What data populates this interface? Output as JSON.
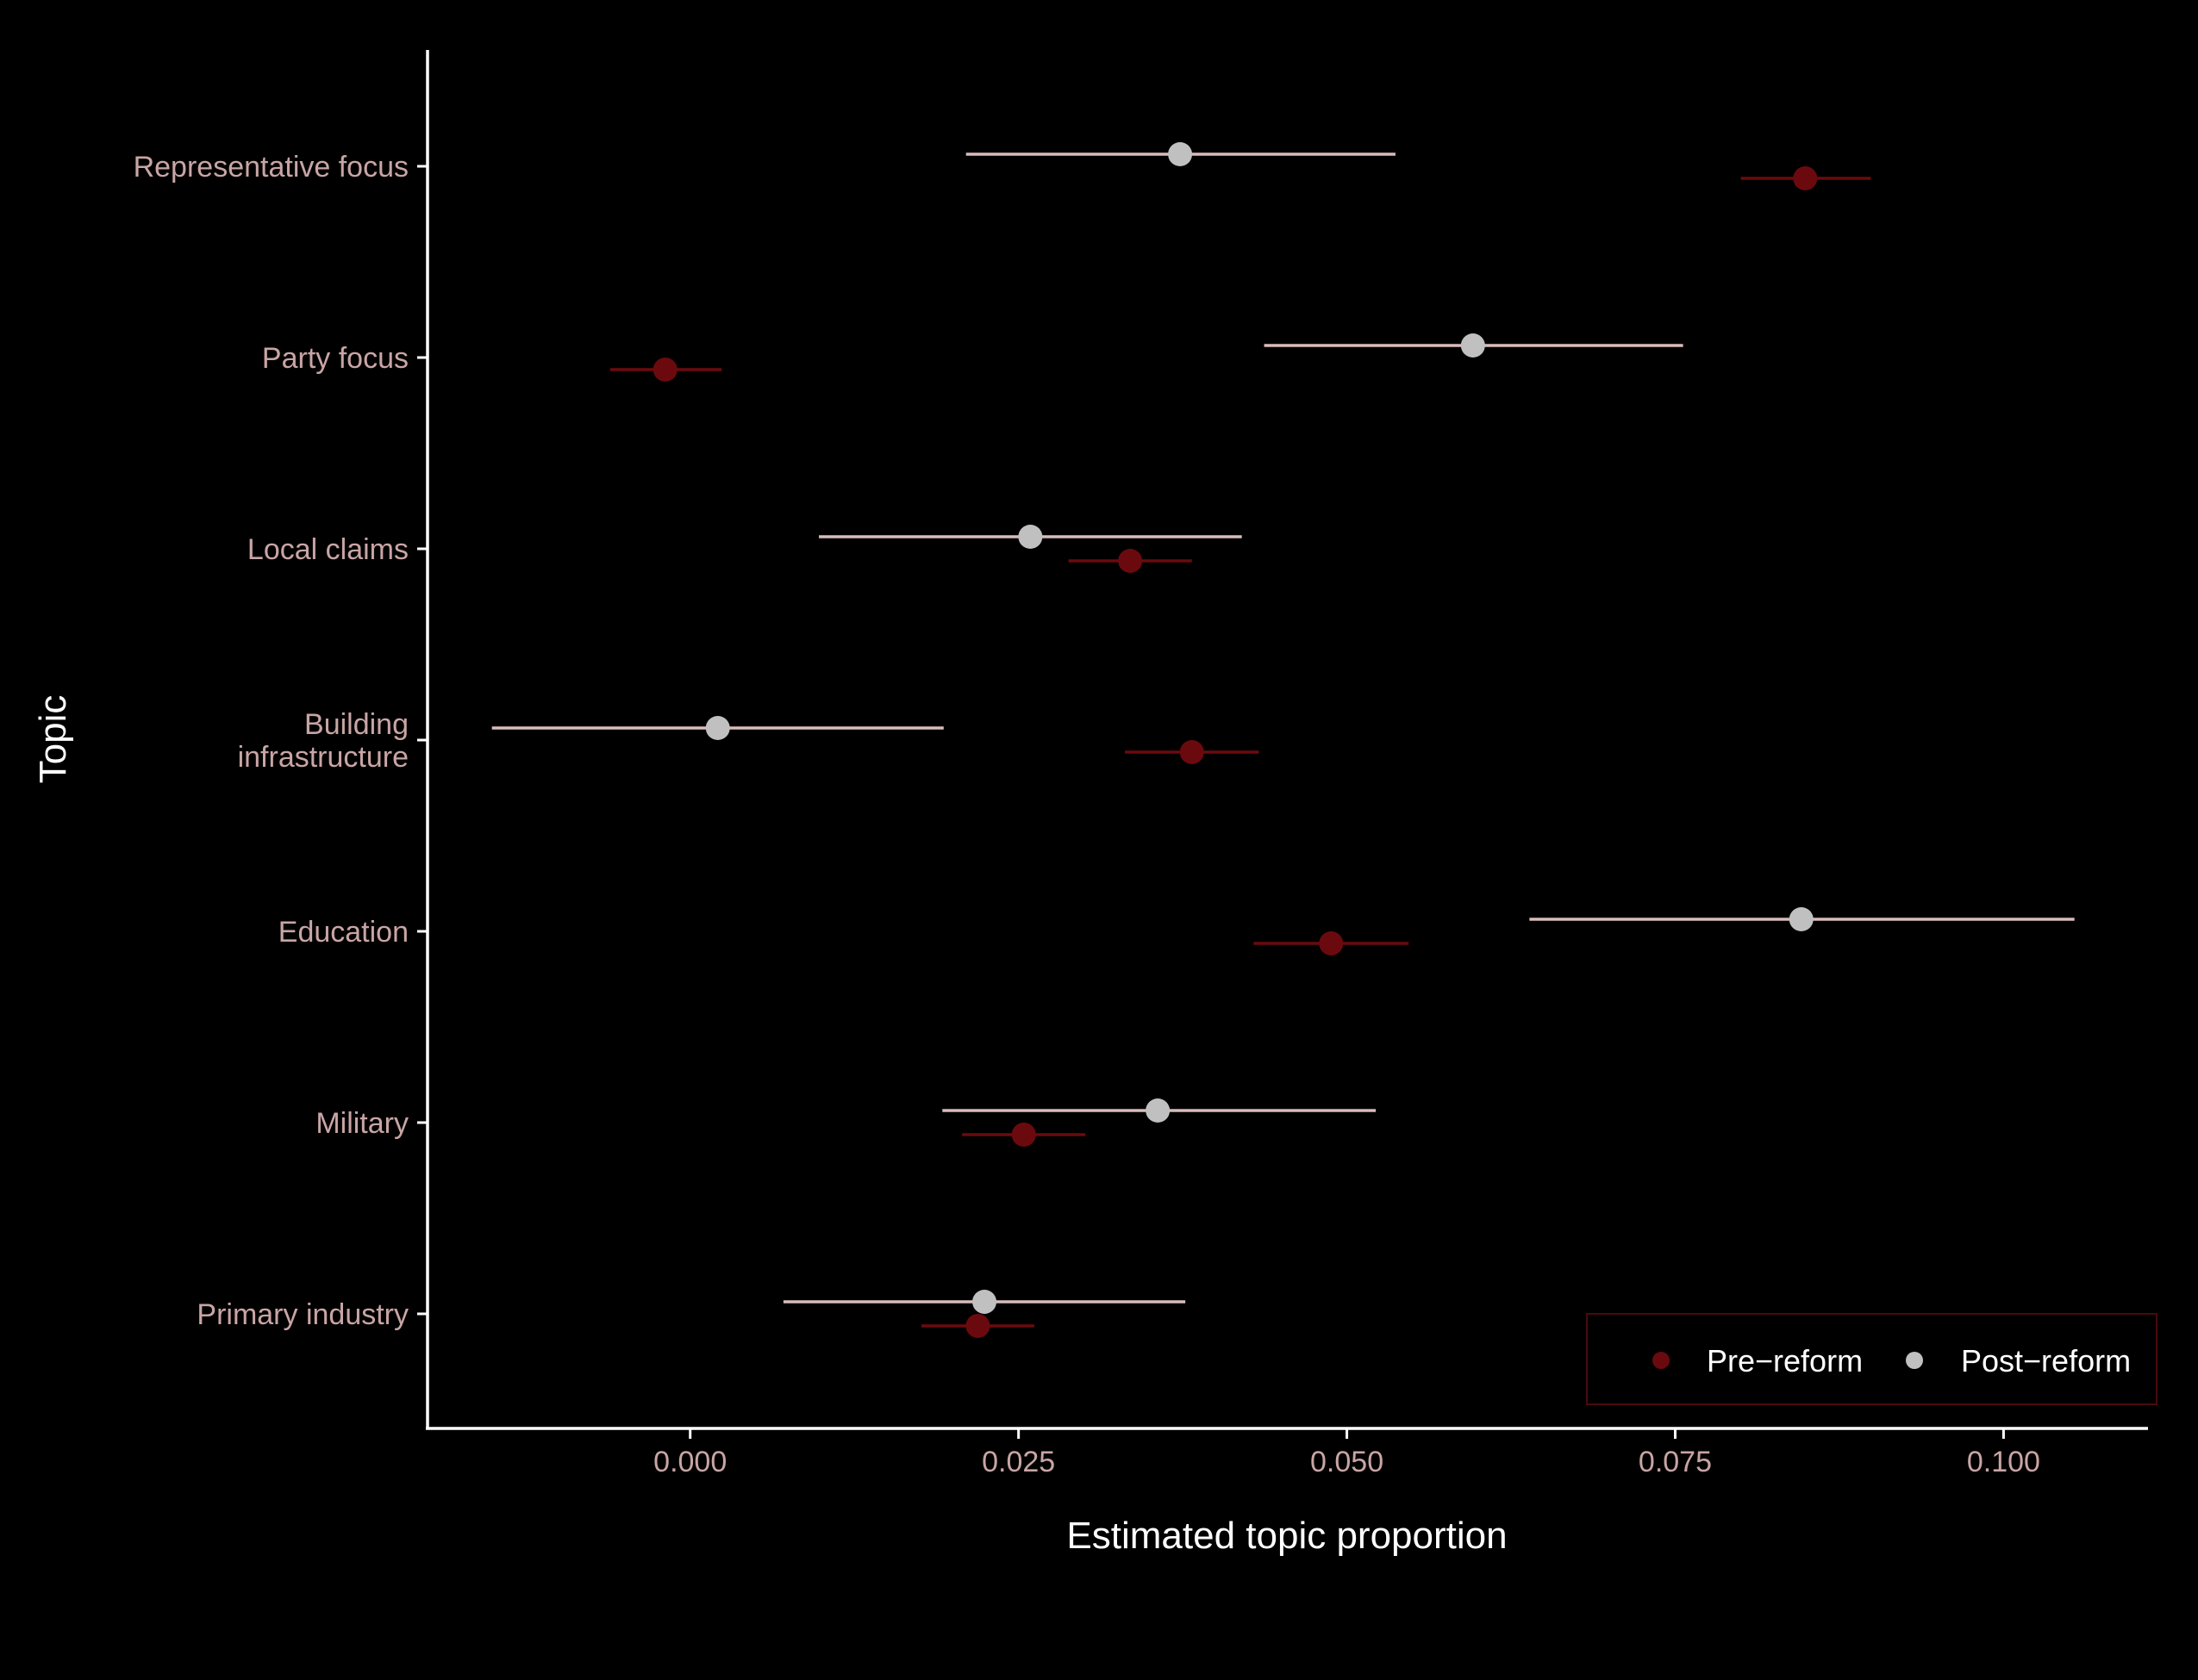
{
  "chart_data": {
    "type": "scatter",
    "subtype": "point-range (coefficient plot)",
    "xlabel": "Estimated topic proportion",
    "ylabel": "Topic",
    "xlim": [
      -0.02,
      0.111
    ],
    "x_ticks": [
      0.0,
      0.025,
      0.05,
      0.075,
      0.1
    ],
    "x_tick_labels": [
      "0.000",
      "0.025",
      "0.050",
      "0.075",
      "0.100"
    ],
    "categories": [
      "Representative focus",
      "Party focus",
      "Local claims",
      "Building infrastructure",
      "Education",
      "Military",
      "Primary industry"
    ],
    "category_labels": [
      [
        "Representative focus"
      ],
      [
        "Party focus"
      ],
      [
        "Local claims"
      ],
      [
        "Building",
        "infrastructure"
      ],
      [
        "Education"
      ],
      [
        "Military"
      ],
      [
        "Primary industry"
      ]
    ],
    "series": [
      {
        "name": "Post−reform",
        "color": "#c0c0c0",
        "line_color": "#d9bcbc",
        "points": [
          {
            "estimate": 0.0373,
            "lower": 0.021,
            "upper": 0.0537
          },
          {
            "estimate": 0.0596,
            "lower": 0.0437,
            "upper": 0.0756
          },
          {
            "estimate": 0.0259,
            "lower": 0.0098,
            "upper": 0.042
          },
          {
            "estimate": 0.0021,
            "lower": -0.0151,
            "upper": 0.0193
          },
          {
            "estimate": 0.0846,
            "lower": 0.0639,
            "upper": 0.1054
          },
          {
            "estimate": 0.0356,
            "lower": 0.0192,
            "upper": 0.0522
          },
          {
            "estimate": 0.0224,
            "lower": 0.0071,
            "upper": 0.0377
          }
        ]
      },
      {
        "name": "Pre−reform",
        "color": "#6b0a0e",
        "line_color": "#6b0a0e",
        "points": [
          {
            "estimate": 0.0849,
            "lower": 0.08,
            "upper": 0.0899
          },
          {
            "estimate": -0.0019,
            "lower": -0.0061,
            "upper": 0.0024
          },
          {
            "estimate": 0.0335,
            "lower": 0.0288,
            "upper": 0.0382
          },
          {
            "estimate": 0.0382,
            "lower": 0.0331,
            "upper": 0.0433
          },
          {
            "estimate": 0.0488,
            "lower": 0.0429,
            "upper": 0.0547
          },
          {
            "estimate": 0.0254,
            "lower": 0.0207,
            "upper": 0.0301
          },
          {
            "estimate": 0.0219,
            "lower": 0.0176,
            "upper": 0.0262
          }
        ]
      }
    ],
    "legend": {
      "position": "bottom-right, inside",
      "order": [
        "Pre−reform",
        "Post−reform"
      ],
      "border_color": "#4a0a0c"
    },
    "grid": false,
    "colors": {
      "background": "#000000",
      "axis": "#ffffff",
      "tick_label": "#c9a5a5",
      "title": "#ffffff"
    }
  }
}
